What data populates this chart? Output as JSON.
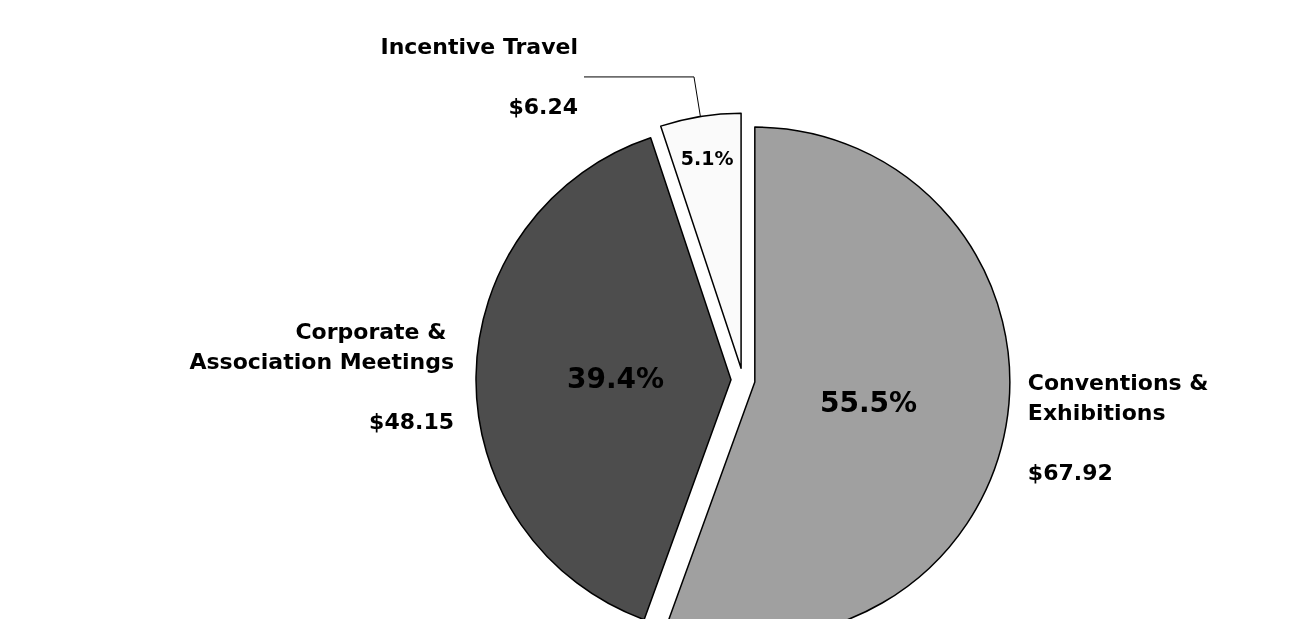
{
  "chart_data": {
    "type": "pie",
    "categories": [
      "Conventions & Exhibitions",
      "Corporate & Association Meetings",
      "Incentive Travel"
    ],
    "values": [
      67.92,
      48.15,
      6.24
    ],
    "colors": [
      "#a0a0a0",
      "#4d4d4d",
      "#fafafa"
    ],
    "value_labels": [
      "$67.92",
      "$48.15",
      "$6.24"
    ],
    "annotations": [
      "55.5%",
      "39.4%",
      "5.1%"
    ],
    "legend": false
  }
}
